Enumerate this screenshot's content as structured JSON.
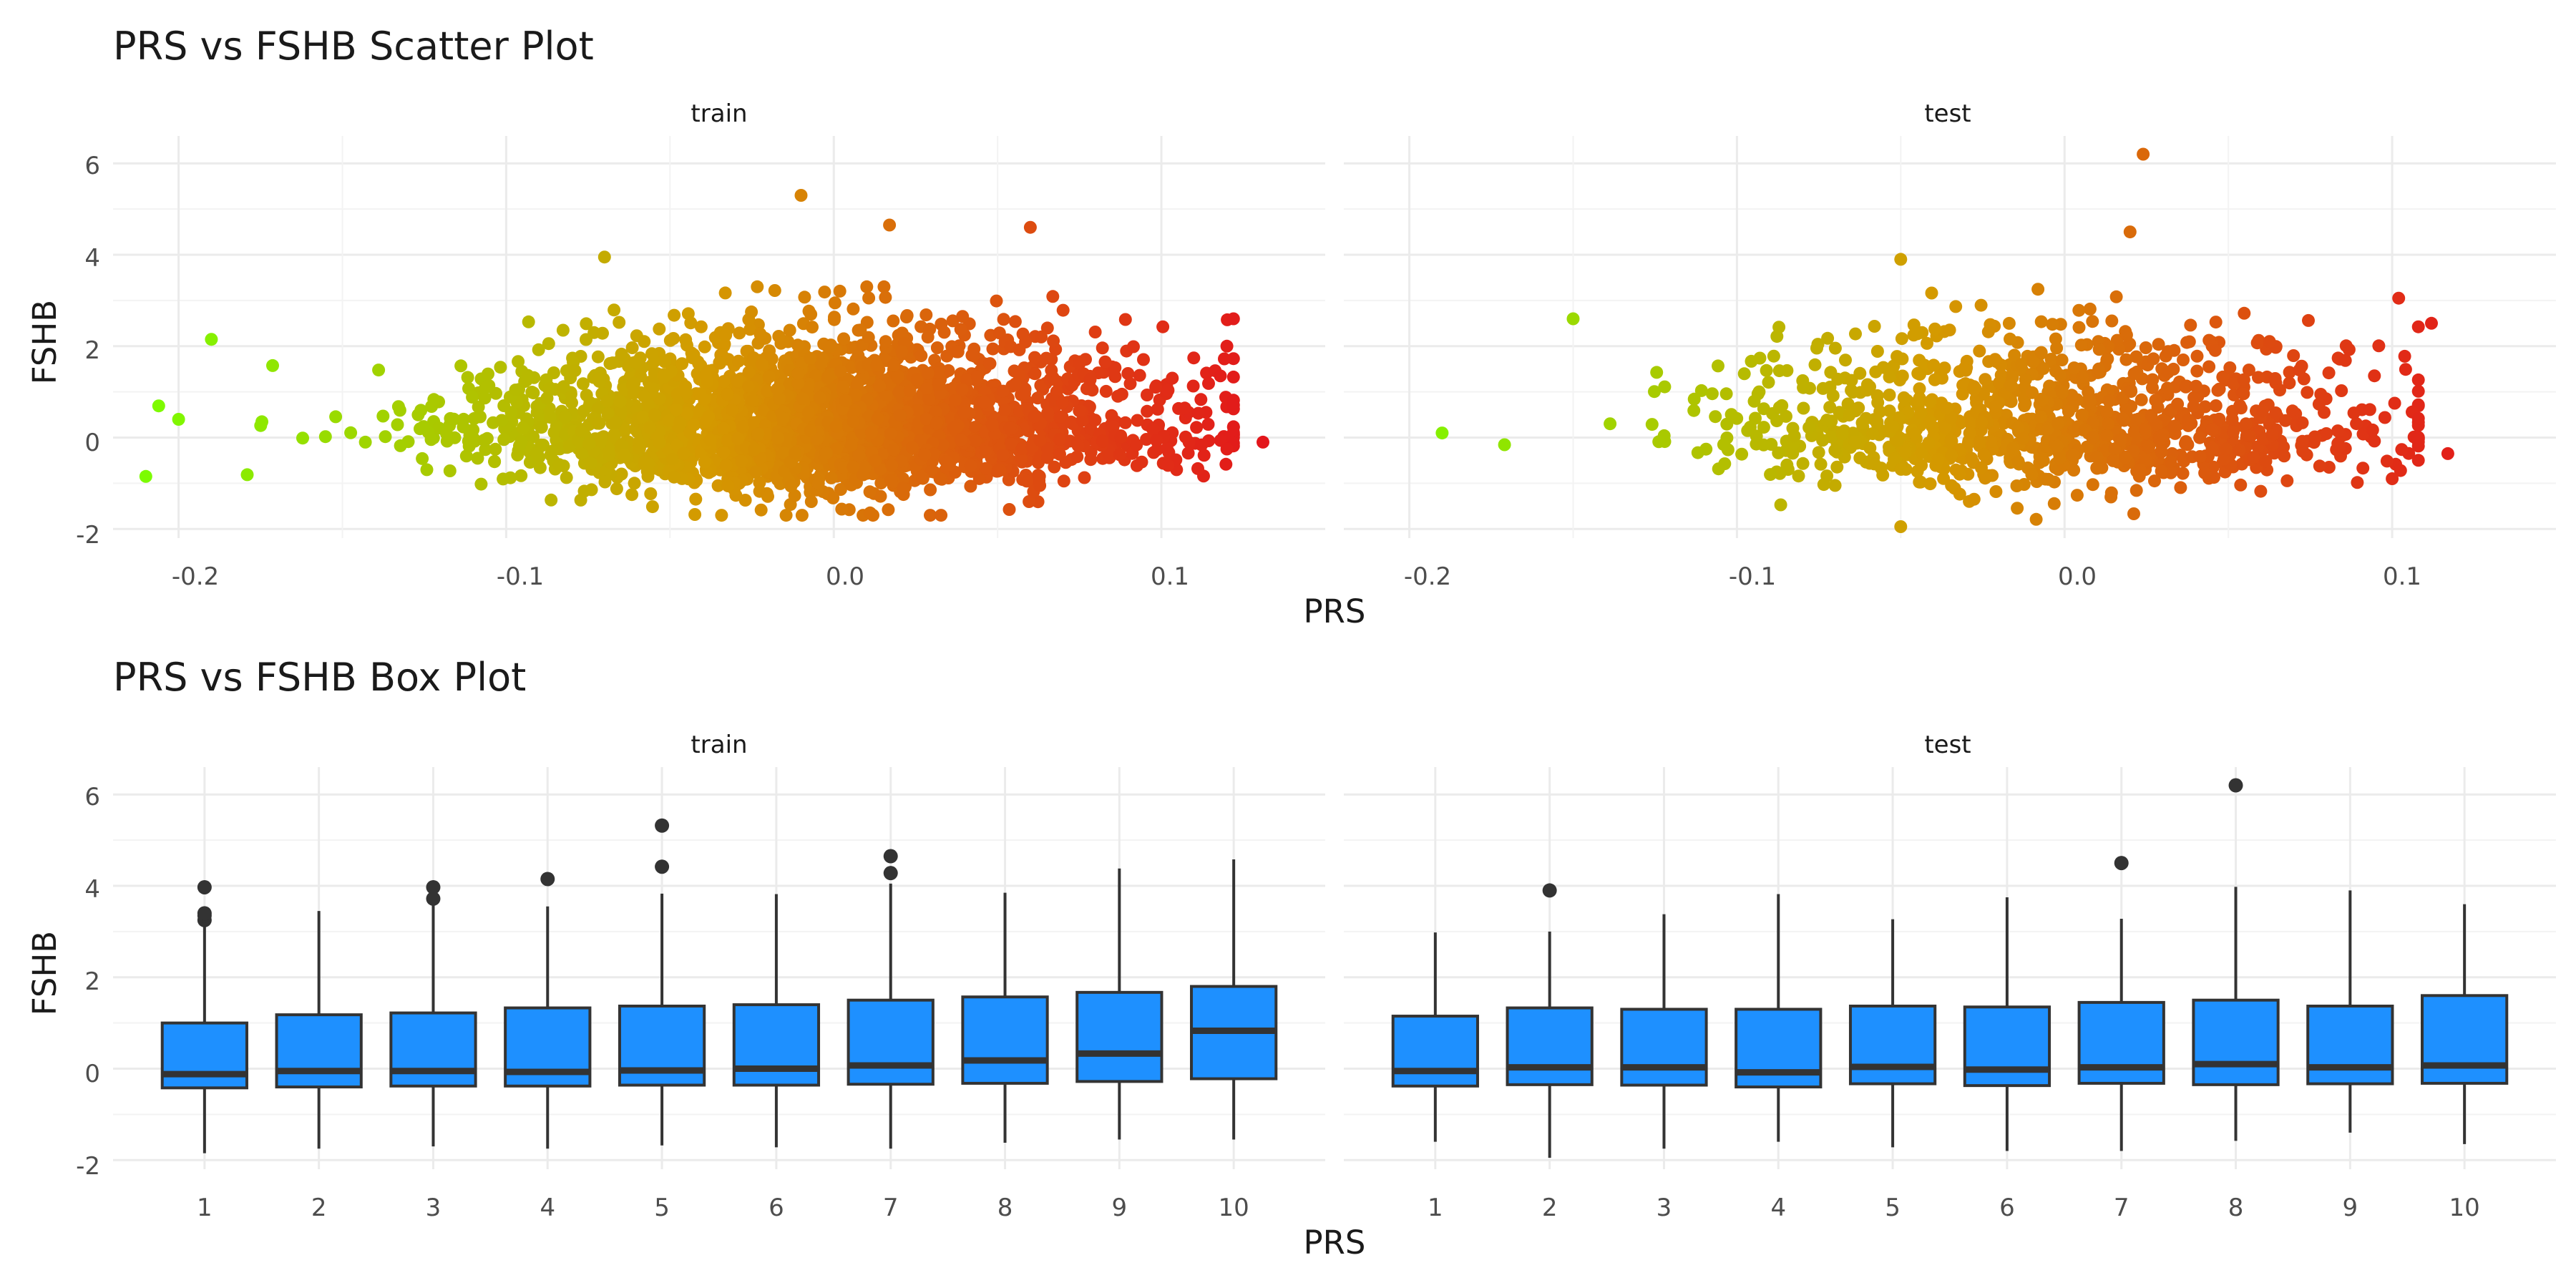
{
  "colors": {
    "low": "#7CFC00",
    "mid": "#D49A00",
    "high": "#E3161B",
    "box_fill": "#1E90FF",
    "box_line": "#333333",
    "outlier": "#333333"
  },
  "chart_data": [
    {
      "type": "scatter",
      "title": "PRS vs FSHB Scatter Plot",
      "xlabel": "PRS",
      "ylabel": "FSHB",
      "facets": [
        "train",
        "test"
      ],
      "xlim": [
        -0.22,
        0.15
      ],
      "ylim": [
        -2.2,
        6.6
      ],
      "x_ticks": [
        "-0.2",
        "-0.1",
        "0.0",
        "0.1"
      ],
      "y_ticks": [
        "-2",
        "0",
        "2",
        "4",
        "6"
      ],
      "color_scale": {
        "low_x": -0.21,
        "high_x": 0.13,
        "colors": [
          "#7CFC00",
          "#D49A00",
          "#E3161B"
        ]
      },
      "series": [
        {
          "facet": "train",
          "x_range": [
            -0.21,
            0.132
          ],
          "y_range": [
            -1.8,
            5.3
          ],
          "n_points_estimate": 6000,
          "highlight_points": [
            [
              -0.21,
              -0.85
            ],
            [
              -0.19,
              2.15
            ],
            [
              -0.2,
              0.4
            ],
            [
              0.122,
              2.6
            ],
            [
              0.131,
              -0.1
            ],
            [
              0.12,
              -0.25
            ],
            [
              0.118,
              1.35
            ],
            [
              -0.01,
              5.3
            ],
            [
              0.017,
              4.65
            ],
            [
              0.06,
              4.6
            ],
            [
              -0.07,
              3.95
            ],
            [
              0.12,
              2.0
            ]
          ]
        },
        {
          "facet": "test",
          "x_range": [
            -0.19,
            0.118
          ],
          "y_range": [
            -1.95,
            6.2
          ],
          "n_points_estimate": 2500,
          "highlight_points": [
            [
              -0.19,
              0.1
            ],
            [
              0.024,
              6.2
            ],
            [
              0.02,
              4.5
            ],
            [
              0.112,
              2.5
            ],
            [
              0.102,
              3.05
            ],
            [
              0.117,
              -0.35
            ],
            [
              -0.15,
              2.6
            ],
            [
              -0.05,
              3.9
            ],
            [
              0.1,
              -0.9
            ],
            [
              -0.05,
              -1.95
            ]
          ]
        }
      ]
    },
    {
      "type": "box",
      "title": "PRS vs FSHB Box Plot",
      "xlabel": "PRS",
      "ylabel": "FSHB",
      "facets": [
        "train",
        "test"
      ],
      "categories": [
        "1",
        "2",
        "3",
        "4",
        "5",
        "6",
        "7",
        "8",
        "9",
        "10"
      ],
      "ylim": [
        -2.2,
        6.6
      ],
      "y_ticks": [
        "-2",
        "0",
        "2",
        "4",
        "6"
      ],
      "series": [
        {
          "facet": "train",
          "boxes": [
            {
              "whisker_low": -1.85,
              "q1": -0.42,
              "median": -0.12,
              "q3": 1.0,
              "whisker_high": 3.2,
              "outliers": [
                3.25,
                3.35,
                3.4,
                3.97
              ]
            },
            {
              "whisker_low": -1.75,
              "q1": -0.4,
              "median": -0.05,
              "q3": 1.18,
              "whisker_high": 3.45,
              "outliers": []
            },
            {
              "whisker_low": -1.7,
              "q1": -0.38,
              "median": -0.05,
              "q3": 1.22,
              "whisker_high": 3.6,
              "outliers": [
                3.72,
                3.97
              ]
            },
            {
              "whisker_low": -1.75,
              "q1": -0.38,
              "median": -0.07,
              "q3": 1.33,
              "whisker_high": 3.55,
              "outliers": [
                4.15
              ]
            },
            {
              "whisker_low": -1.68,
              "q1": -0.36,
              "median": -0.04,
              "q3": 1.37,
              "whisker_high": 3.83,
              "outliers": [
                4.42,
                5.32
              ]
            },
            {
              "whisker_low": -1.72,
              "q1": -0.36,
              "median": 0.0,
              "q3": 1.4,
              "whisker_high": 3.82,
              "outliers": []
            },
            {
              "whisker_low": -1.75,
              "q1": -0.34,
              "median": 0.07,
              "q3": 1.5,
              "whisker_high": 4.05,
              "outliers": [
                4.28,
                4.65
              ]
            },
            {
              "whisker_low": -1.62,
              "q1": -0.32,
              "median": 0.18,
              "q3": 1.57,
              "whisker_high": 3.85,
              "outliers": []
            },
            {
              "whisker_low": -1.55,
              "q1": -0.28,
              "median": 0.33,
              "q3": 1.67,
              "whisker_high": 4.38,
              "outliers": []
            },
            {
              "whisker_low": -1.55,
              "q1": -0.22,
              "median": 0.83,
              "q3": 1.8,
              "whisker_high": 4.58,
              "outliers": []
            }
          ]
        },
        {
          "facet": "test",
          "boxes": [
            {
              "whisker_low": -1.6,
              "q1": -0.38,
              "median": -0.05,
              "q3": 1.15,
              "whisker_high": 2.98,
              "outliers": []
            },
            {
              "whisker_low": -1.95,
              "q1": -0.35,
              "median": 0.03,
              "q3": 1.33,
              "whisker_high": 3.0,
              "outliers": [
                3.9
              ]
            },
            {
              "whisker_low": -1.75,
              "q1": -0.36,
              "median": 0.03,
              "q3": 1.3,
              "whisker_high": 3.38,
              "outliers": []
            },
            {
              "whisker_low": -1.6,
              "q1": -0.4,
              "median": -0.08,
              "q3": 1.3,
              "whisker_high": 3.82,
              "outliers": []
            },
            {
              "whisker_low": -1.72,
              "q1": -0.33,
              "median": 0.04,
              "q3": 1.37,
              "whisker_high": 3.27,
              "outliers": []
            },
            {
              "whisker_low": -1.8,
              "q1": -0.37,
              "median": -0.02,
              "q3": 1.35,
              "whisker_high": 3.75,
              "outliers": []
            },
            {
              "whisker_low": -1.8,
              "q1": -0.32,
              "median": 0.03,
              "q3": 1.45,
              "whisker_high": 3.28,
              "outliers": [
                4.5
              ]
            },
            {
              "whisker_low": -1.58,
              "q1": -0.35,
              "median": 0.1,
              "q3": 1.5,
              "whisker_high": 3.98,
              "outliers": [
                6.2
              ]
            },
            {
              "whisker_low": -1.4,
              "q1": -0.33,
              "median": 0.03,
              "q3": 1.37,
              "whisker_high": 3.9,
              "outliers": []
            },
            {
              "whisker_low": -1.65,
              "q1": -0.32,
              "median": 0.07,
              "q3": 1.6,
              "whisker_high": 3.6,
              "outliers": []
            }
          ]
        }
      ]
    }
  ]
}
